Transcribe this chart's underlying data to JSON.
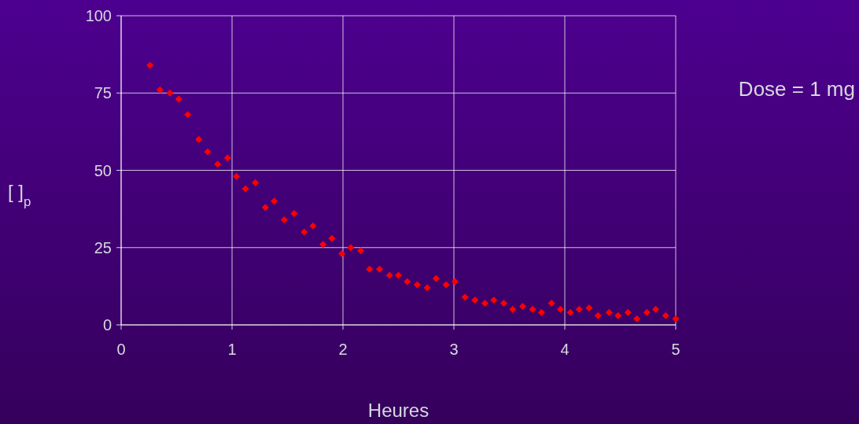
{
  "chart_data": {
    "type": "scatter",
    "xlabel": "Heures",
    "ylabel": "[ ]$_{p}$",
    "annotations": [
      "Dose = 1 mg"
    ],
    "x": [
      0.26,
      0.35,
      0.44,
      0.52,
      0.6,
      0.7,
      0.78,
      0.87,
      0.96,
      1.04,
      1.12,
      1.21,
      1.3,
      1.38,
      1.47,
      1.56,
      1.65,
      1.73,
      1.82,
      1.9,
      1.99,
      2.07,
      2.16,
      2.24,
      2.33,
      2.42,
      2.5,
      2.58,
      2.67,
      2.76,
      2.84,
      2.93,
      3.01,
      3.1,
      3.19,
      3.28,
      3.36,
      3.45,
      3.53,
      3.62,
      3.71,
      3.79,
      3.88,
      3.96,
      4.05,
      4.13,
      4.22,
      4.3,
      4.4,
      4.48,
      4.57,
      4.65,
      4.74,
      4.82,
      4.91,
      5.0
    ],
    "series": [
      {
        "color": "#ff0000",
        "values": [
          84,
          76,
          75,
          73,
          68,
          60,
          56,
          52,
          54,
          48,
          44,
          46,
          38,
          40,
          34,
          36,
          30,
          32,
          26,
          28,
          23,
          25,
          24,
          18,
          18,
          16,
          16,
          14,
          13,
          12,
          15,
          13,
          14,
          9,
          8,
          7,
          8,
          7,
          5,
          6,
          5,
          4,
          7,
          5,
          4,
          5,
          5.5,
          3,
          4,
          3,
          4,
          2,
          4,
          5,
          3,
          2
        ]
      }
    ],
    "xlim": [
      0,
      5
    ],
    "xticks": [
      0,
      1,
      2,
      3,
      4,
      5
    ],
    "ylim": [
      0,
      100
    ],
    "yticks": [
      0,
      25,
      50,
      75,
      100
    ],
    "grid": true,
    "marker": "diamond"
  }
}
